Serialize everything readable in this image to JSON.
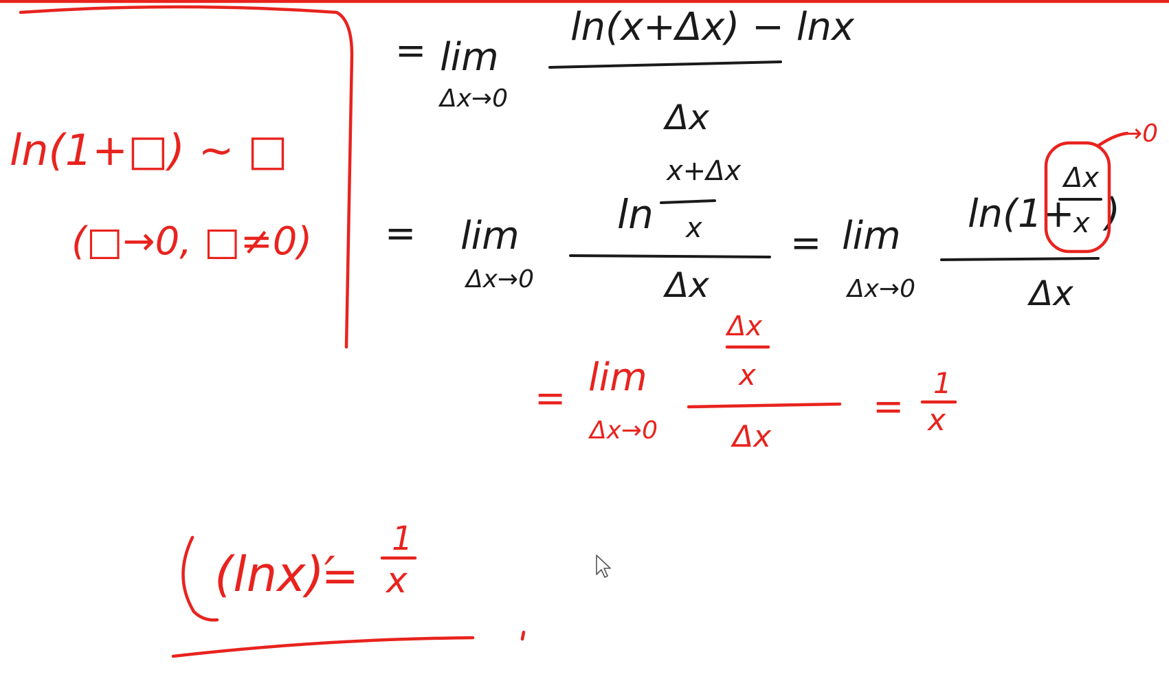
{
  "colors": {
    "ink_black": "#1a1a1a",
    "ink_red": "#e8231e",
    "background": "#ffffff"
  },
  "side_note": {
    "rule": "ln(1+□) ~ □",
    "condition": "(□→0, □≠0)"
  },
  "step1": {
    "eq": "=",
    "lim": "lim",
    "sub": "Δx→0",
    "numerator": "ln(x+Δx) − lnx",
    "denominator": "Δx"
  },
  "step2": {
    "eq": "=",
    "lim": "lim",
    "sub": "Δx→0",
    "num_ln": "ln",
    "num_top": "x+Δx",
    "num_bottom": "x",
    "denominator": "Δx"
  },
  "step3": {
    "eq": "=",
    "lim": "lim",
    "sub": "Δx→0",
    "num_ln": "ln(1+",
    "num_top": "Δx",
    "num_bottom": "x",
    "num_close": ")",
    "denominator": "Δx",
    "annotation": "→0"
  },
  "step4": {
    "eq": "=",
    "lim": "lim",
    "sub": "Δx→0",
    "num_top": "Δx",
    "num_bottom": "x",
    "denominator": "Δx",
    "eq2": "=",
    "result_top": "1",
    "result_bottom": "x"
  },
  "result": {
    "lhs": "(lnx)′",
    "eq": "=",
    "rhs_top": "1",
    "rhs_bottom": "x"
  },
  "cursor_icon": "mouse-pointer-icon"
}
